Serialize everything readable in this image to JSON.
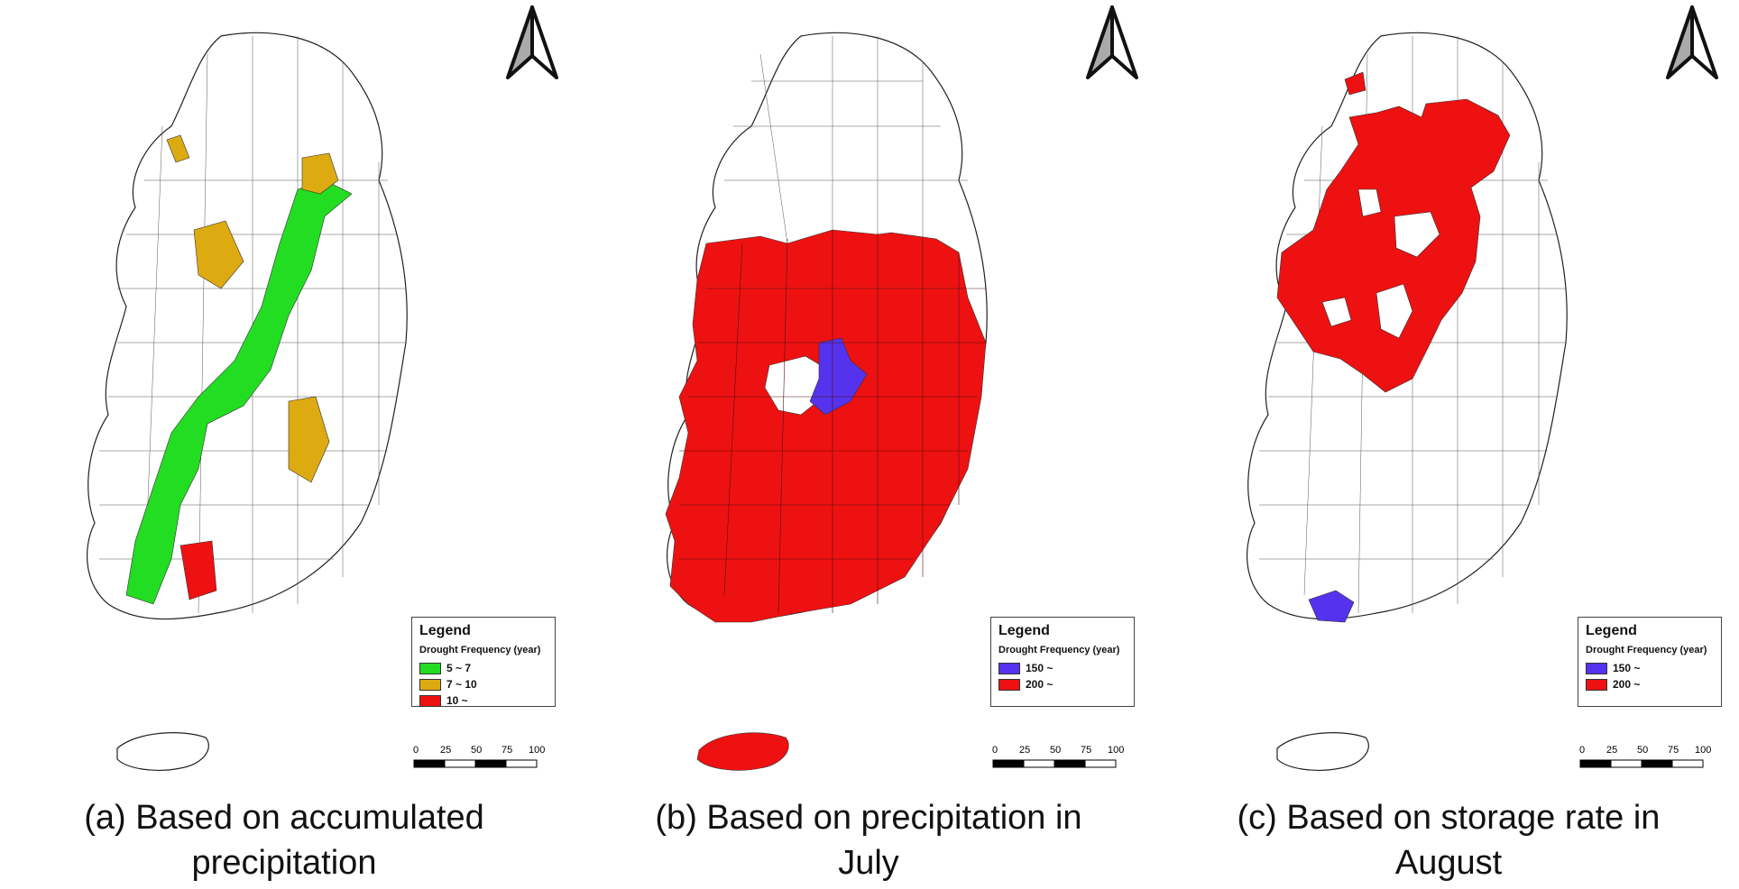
{
  "panels": [
    {
      "caption": "(a) Based on accumulated precipitation",
      "legend": {
        "title": "Legend",
        "subtitle": "Drought Frequency (year)",
        "items": [
          {
            "label": "5 ~ 7",
            "color": "#22dd22"
          },
          {
            "label": "7 ~ 10",
            "color": "#ddaa11"
          },
          {
            "label": "10 ~",
            "color": "#ee1111"
          }
        ]
      },
      "scale": {
        "ticks": [
          "0",
          "25",
          "50",
          "75",
          "100 km"
        ]
      }
    },
    {
      "caption": "(b) Based on precipitation in July",
      "legend": {
        "title": "Legend",
        "subtitle": "Drought Frequency (year)",
        "items": [
          {
            "label": "150 ~",
            "color": "#5533ee"
          },
          {
            "label": "200 ~",
            "color": "#ee1111"
          }
        ]
      },
      "scale": {
        "ticks": [
          "0",
          "25",
          "50",
          "75",
          "100 km"
        ]
      }
    },
    {
      "caption": "(c) Based on storage rate in August",
      "legend": {
        "title": "Legend",
        "subtitle": "Drought Frequency (year)",
        "items": [
          {
            "label": "150 ~",
            "color": "#5533ee"
          },
          {
            "label": "200 ~",
            "color": "#ee1111"
          }
        ]
      },
      "scale": {
        "ticks": [
          "0",
          "25",
          "50",
          "75",
          "100 km"
        ]
      }
    }
  ]
}
